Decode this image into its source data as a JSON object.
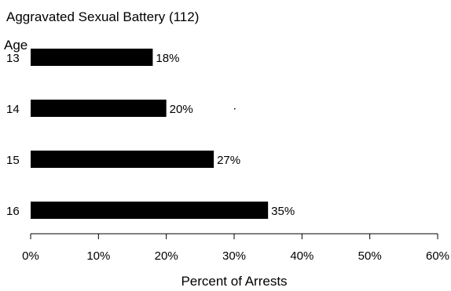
{
  "chart_data": {
    "type": "bar",
    "orientation": "horizontal",
    "title": "Aggravated Sexual Battery  (112)",
    "ylabel": "Age",
    "xlabel": "Percent of Arrests",
    "categories": [
      "13",
      "14",
      "15",
      "16"
    ],
    "values": [
      18,
      20,
      27,
      35
    ],
    "value_labels": [
      "18%",
      "20%",
      "27%",
      "35%"
    ],
    "xlim": [
      0,
      60
    ],
    "x_ticks": [
      0,
      10,
      20,
      30,
      40,
      50,
      60
    ],
    "x_tick_labels": [
      "0%",
      "10%",
      "20%",
      "30%",
      "40%",
      "50%",
      "60%"
    ],
    "grid": false,
    "bar_color": "#000000"
  }
}
